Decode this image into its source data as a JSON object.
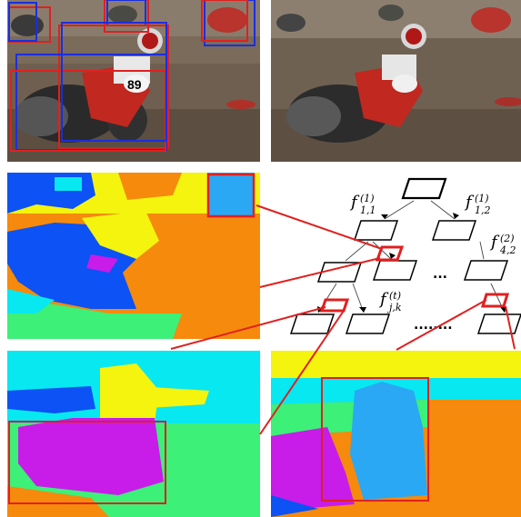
{
  "figure": {
    "panels": [
      {
        "id": "detection",
        "content": "motocross rider photo with red and blue detection boxes, race number 89"
      },
      {
        "id": "smoothed",
        "content": "smoothed / posterized version of the rider photo"
      },
      {
        "id": "fine-segmentation",
        "content": "colored segmentation map (fine level)"
      },
      {
        "id": "coarse-segmentation-left",
        "content": "colored segmentation map (coarse level) with red box"
      },
      {
        "id": "coarse-segmentation-right",
        "content": "colored segmentation map (coarse level) with red box"
      }
    ],
    "number_plate": "89",
    "tree": {
      "labels": {
        "f11_base": "f",
        "f11_sub": "1,1",
        "f11_sup": "(1)",
        "f12_base": "f",
        "f12_sub": "1,2",
        "f12_sup": "(1)",
        "f42_base": "f",
        "f42_sub": "4,2",
        "f42_sup": "(2)",
        "fjk_base": "f",
        "fjk_sub": "j,k",
        "fjk_sup": "(t)"
      },
      "ellipsis_level2": "...",
      "ellipsis_level3": "........"
    },
    "colors": {
      "highlight_red": "#e02020",
      "box_blue": "#1a2ee0",
      "seg_orange": "#f58a0c",
      "seg_yellow": "#f4f40e",
      "seg_cyan": "#08e8f0",
      "seg_blue": "#0c52f4",
      "seg_magenta": "#c81ce8",
      "seg_green": "#3cf078",
      "seg_lightblue": "#2aa8f4"
    }
  }
}
